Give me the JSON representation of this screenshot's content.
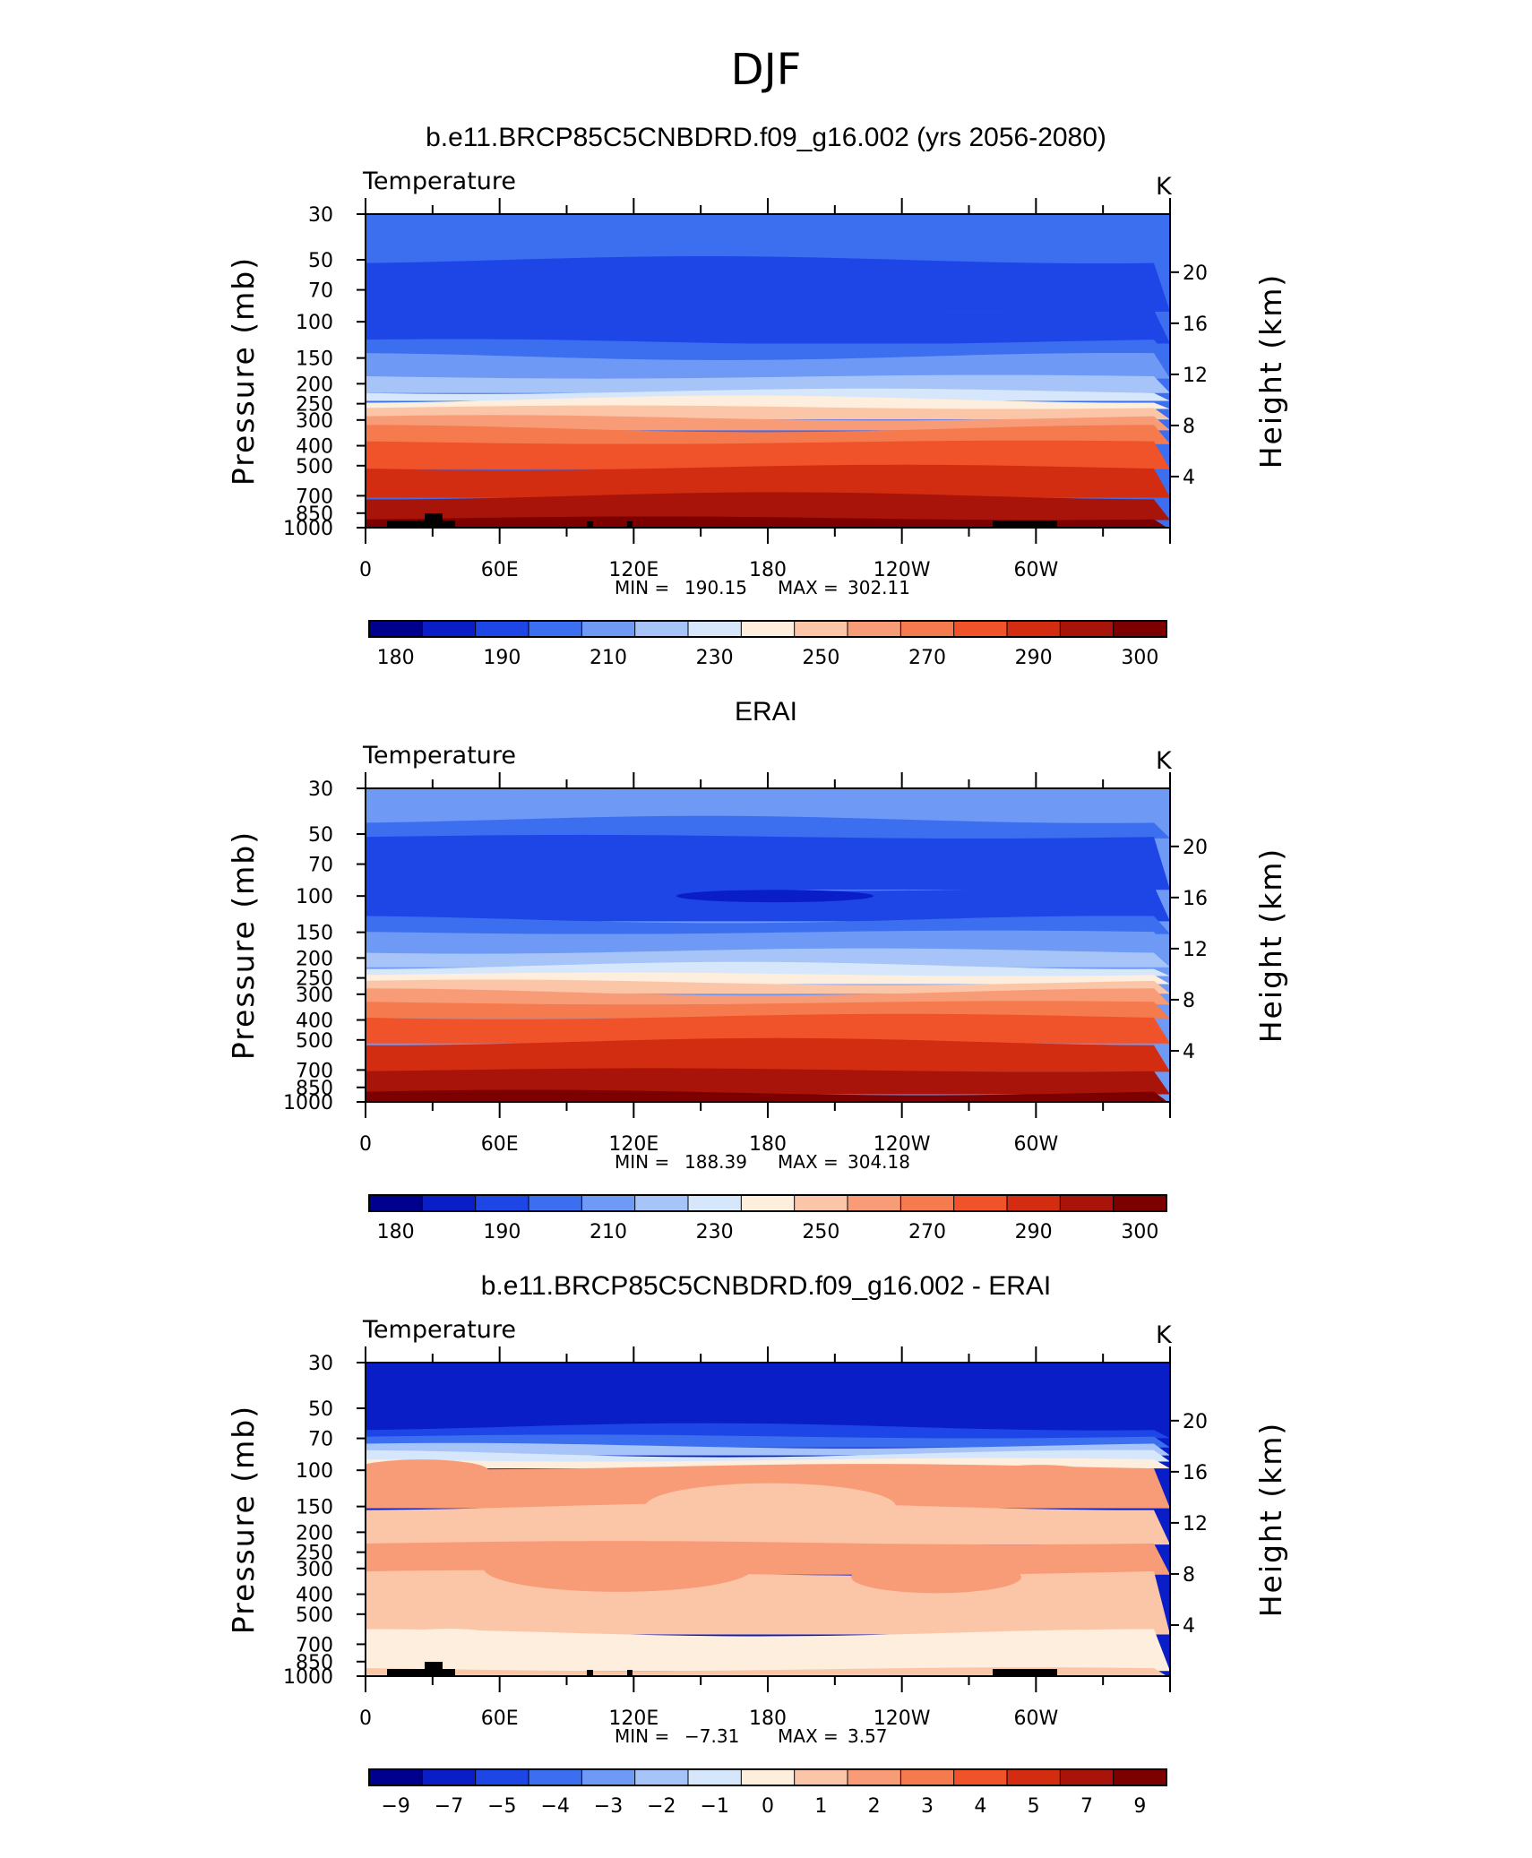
{
  "figure_title": "DJF",
  "chart_data": [
    {
      "type": "heatmap",
      "title": "b.e11.BRCP85C5CNBDRD.f09_g16.002 (yrs 2056-2080)",
      "variable": "Temperature",
      "units": "K",
      "ylabel": "Pressure (mb)",
      "ylabel_right": "Height (km)",
      "xticks": [
        "0",
        "60E",
        "120E",
        "180",
        "120W",
        "60W"
      ],
      "yticks": [
        "30",
        "50",
        "70",
        "100",
        "150",
        "200",
        "250",
        "300",
        "400",
        "500",
        "700",
        "850",
        "1000"
      ],
      "yticks_right": [
        "20",
        "16",
        "12",
        "8",
        "4"
      ],
      "stats": {
        "min_label": "MIN =",
        "min": "190.15",
        "max_label": "MAX =",
        "max": "302.11"
      },
      "colorbar_labels": [
        "180",
        "190",
        "210",
        "230",
        "250",
        "270",
        "290",
        "300"
      ],
      "colors": [
        "#00008f",
        "#0a1ec8",
        "#1e46e6",
        "#3c6ef0",
        "#6e99f5",
        "#a6c4f8",
        "#d7e7fb",
        "#fdeedd",
        "#fbc5a8",
        "#f89c78",
        "#f57a4e",
        "#f0522a",
        "#d22d10",
        "#a8140a",
        "#7d0000"
      ],
      "profile": [
        [
          30,
          3
        ],
        [
          45,
          3
        ],
        [
          55,
          2
        ],
        [
          120,
          2
        ],
        [
          130,
          3
        ],
        [
          165,
          4
        ],
        [
          205,
          5
        ],
        [
          230,
          6
        ],
        [
          245,
          7
        ],
        [
          275,
          8
        ],
        [
          310,
          9
        ],
        [
          350,
          10
        ],
        [
          420,
          11
        ],
        [
          600,
          12
        ],
        [
          800,
          13
        ],
        [
          1000,
          14
        ]
      ],
      "topography": true
    },
    {
      "type": "heatmap",
      "title": "ERAI",
      "variable": "Temperature",
      "units": "K",
      "ylabel": "Pressure (mb)",
      "ylabel_right": "Height (km)",
      "xticks": [
        "0",
        "60E",
        "120E",
        "180",
        "120W",
        "60W"
      ],
      "yticks": [
        "30",
        "50",
        "70",
        "100",
        "150",
        "200",
        "250",
        "300",
        "400",
        "500",
        "700",
        "850",
        "1000"
      ],
      "yticks_right": [
        "20",
        "16",
        "12",
        "8",
        "4"
      ],
      "stats": {
        "min_label": "MIN =",
        "min": "188.39",
        "max_label": "MAX =",
        "max": "304.18"
      },
      "colorbar_labels": [
        "180",
        "190",
        "210",
        "230",
        "250",
        "270",
        "290",
        "300"
      ],
      "colors": [
        "#00008f",
        "#0a1ec8",
        "#1e46e6",
        "#3c6ef0",
        "#6e99f5",
        "#a6c4f8",
        "#d7e7fb",
        "#fdeedd",
        "#fbc5a8",
        "#f89c78",
        "#f57a4e",
        "#f0522a",
        "#d22d10",
        "#a8140a",
        "#7d0000"
      ],
      "profile": [
        [
          30,
          4
        ],
        [
          40,
          4
        ],
        [
          45,
          3
        ],
        [
          58,
          2
        ],
        [
          125,
          2
        ],
        [
          135,
          3
        ],
        [
          165,
          4
        ],
        [
          205,
          5
        ],
        [
          230,
          6
        ],
        [
          250,
          7
        ],
        [
          275,
          8
        ],
        [
          310,
          9
        ],
        [
          350,
          10
        ],
        [
          420,
          11
        ],
        [
          600,
          12
        ],
        [
          800,
          13
        ],
        [
          1000,
          14
        ]
      ],
      "topography": false
    },
    {
      "type": "heatmap",
      "title": "b.e11.BRCP85C5CNBDRD.f09_g16.002 - ERAI",
      "variable": "Temperature",
      "units": "K",
      "ylabel": "Pressure (mb)",
      "ylabel_right": "Height (km)",
      "xticks": [
        "0",
        "60E",
        "120E",
        "180",
        "120W",
        "60W"
      ],
      "yticks": [
        "30",
        "50",
        "70",
        "100",
        "150",
        "200",
        "250",
        "300",
        "400",
        "500",
        "700",
        "850",
        "1000"
      ],
      "yticks_right": [
        "20",
        "16",
        "12",
        "8",
        "4"
      ],
      "stats": {
        "min_label": "MIN =",
        "min": "−7.31",
        "max_label": "MAX =",
        "max": "3.57"
      },
      "colorbar_labels": [
        "−9",
        "−7",
        "−5",
        "−4",
        "−3",
        "−2",
        "−1",
        "0",
        "1",
        "2",
        "3",
        "4",
        "5",
        "7",
        "9"
      ],
      "colors": [
        "#00008f",
        "#0a1ec8",
        "#1e46e6",
        "#3c6ef0",
        "#6e99f5",
        "#a6c4f8",
        "#d7e7fb",
        "#fdeedd",
        "#fbc5a8",
        "#f89c78",
        "#f57a4e",
        "#f0522a",
        "#d22d10",
        "#a8140a",
        "#7d0000"
      ],
      "profile": [
        [
          30,
          1
        ],
        [
          58,
          1
        ],
        [
          65,
          2
        ],
        [
          72,
          3
        ],
        [
          80,
          5
        ],
        [
          86,
          6
        ],
        [
          92,
          7
        ],
        [
          100,
          9
        ],
        [
          200,
          8
        ],
        [
          250,
          9
        ],
        [
          380,
          8
        ],
        [
          850,
          7
        ],
        [
          1000,
          8
        ]
      ],
      "topography": true
    }
  ]
}
